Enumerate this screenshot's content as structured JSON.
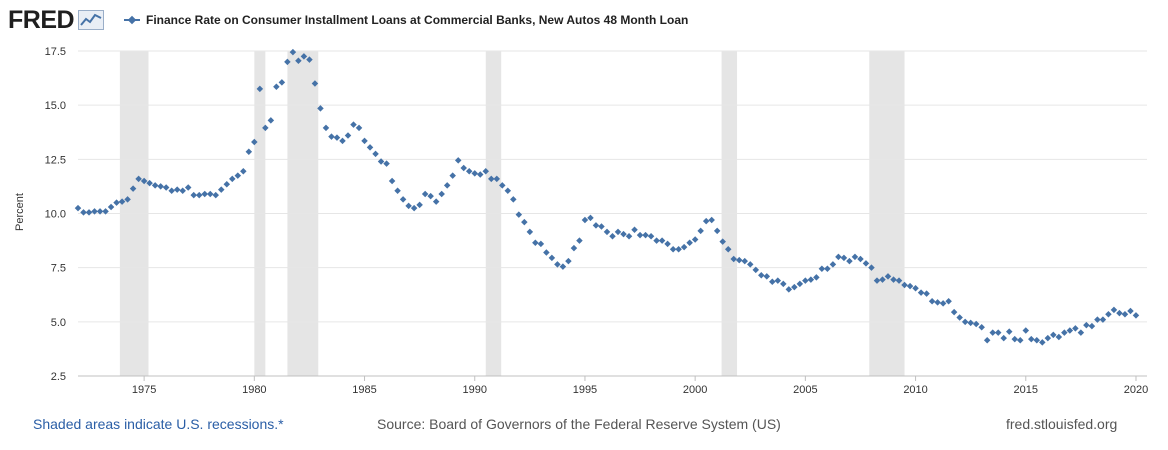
{
  "brand": {
    "logo_text": "FRED"
  },
  "chart_data": {
    "type": "scatter",
    "title": "Finance Rate on Consumer Installment Loans at Commercial Banks, New Autos 48 Month Loan",
    "series_name": "Finance Rate on Consumer Installment Loans at Commercial Banks, New Autos 48 Month Loan",
    "color": "#4572a7",
    "ylabel": "Percent",
    "xlabel": "",
    "xlim": [
      1972.0,
      2020.5
    ],
    "ylim": [
      2.5,
      17.5
    ],
    "yticks": [
      2.5,
      5.0,
      7.5,
      10.0,
      12.5,
      15.0,
      17.5
    ],
    "ytick_labels": [
      "2.5",
      "5.0",
      "7.5",
      "10.0",
      "12.5",
      "15.0",
      "17.5"
    ],
    "xticks": [
      1975,
      1980,
      1985,
      1990,
      1995,
      2000,
      2005,
      2010,
      2015,
      2020
    ],
    "xtick_labels": [
      "1975",
      "1980",
      "1985",
      "1990",
      "1995",
      "2000",
      "2005",
      "2010",
      "2015",
      "2020"
    ],
    "grid": true,
    "recessions": [
      [
        1973.9,
        1975.2
      ],
      [
        1980.0,
        1980.5
      ],
      [
        1981.5,
        1982.9
      ],
      [
        1990.5,
        1991.2
      ],
      [
        2001.2,
        2001.9
      ],
      [
        2007.9,
        2009.5
      ]
    ],
    "points": [
      [
        1972.0,
        10.25
      ],
      [
        1972.25,
        10.05
      ],
      [
        1972.5,
        10.05
      ],
      [
        1972.75,
        10.1
      ],
      [
        1973.0,
        10.1
      ],
      [
        1973.25,
        10.1
      ],
      [
        1973.5,
        10.3
      ],
      [
        1973.75,
        10.5
      ],
      [
        1974.0,
        10.55
      ],
      [
        1974.25,
        10.65
      ],
      [
        1974.5,
        11.15
      ],
      [
        1974.75,
        11.6
      ],
      [
        1975.0,
        11.5
      ],
      [
        1975.25,
        11.4
      ],
      [
        1975.5,
        11.3
      ],
      [
        1975.75,
        11.25
      ],
      [
        1976.0,
        11.2
      ],
      [
        1976.25,
        11.05
      ],
      [
        1976.5,
        11.1
      ],
      [
        1976.75,
        11.05
      ],
      [
        1977.0,
        11.2
      ],
      [
        1977.25,
        10.85
      ],
      [
        1977.5,
        10.85
      ],
      [
        1977.75,
        10.9
      ],
      [
        1978.0,
        10.9
      ],
      [
        1978.25,
        10.85
      ],
      [
        1978.5,
        11.1
      ],
      [
        1978.75,
        11.35
      ],
      [
        1979.0,
        11.6
      ],
      [
        1979.25,
        11.75
      ],
      [
        1979.5,
        11.95
      ],
      [
        1979.75,
        12.85
      ],
      [
        1980.0,
        13.3
      ],
      [
        1980.25,
        15.75
      ],
      [
        1980.5,
        13.95
      ],
      [
        1980.75,
        14.3
      ],
      [
        1981.0,
        15.85
      ],
      [
        1981.25,
        16.05
      ],
      [
        1981.5,
        17.0
      ],
      [
        1981.75,
        17.45
      ],
      [
        1982.0,
        17.05
      ],
      [
        1982.25,
        17.25
      ],
      [
        1982.5,
        17.1
      ],
      [
        1982.75,
        16.0
      ],
      [
        1983.0,
        14.85
      ],
      [
        1983.25,
        13.95
      ],
      [
        1983.5,
        13.55
      ],
      [
        1983.75,
        13.5
      ],
      [
        1984.0,
        13.35
      ],
      [
        1984.25,
        13.6
      ],
      [
        1984.5,
        14.1
      ],
      [
        1984.75,
        13.95
      ],
      [
        1985.0,
        13.35
      ],
      [
        1985.25,
        13.05
      ],
      [
        1985.5,
        12.75
      ],
      [
        1985.75,
        12.4
      ],
      [
        1986.0,
        12.3
      ],
      [
        1986.25,
        11.5
      ],
      [
        1986.5,
        11.05
      ],
      [
        1986.75,
        10.65
      ],
      [
        1987.0,
        10.35
      ],
      [
        1987.25,
        10.25
      ],
      [
        1987.5,
        10.4
      ],
      [
        1987.75,
        10.9
      ],
      [
        1988.0,
        10.8
      ],
      [
        1988.25,
        10.55
      ],
      [
        1988.5,
        10.9
      ],
      [
        1988.75,
        11.3
      ],
      [
        1989.0,
        11.75
      ],
      [
        1989.25,
        12.45
      ],
      [
        1989.5,
        12.1
      ],
      [
        1989.75,
        11.95
      ],
      [
        1990.0,
        11.85
      ],
      [
        1990.25,
        11.8
      ],
      [
        1990.5,
        11.95
      ],
      [
        1990.75,
        11.6
      ],
      [
        1991.0,
        11.6
      ],
      [
        1991.25,
        11.3
      ],
      [
        1991.5,
        11.05
      ],
      [
        1991.75,
        10.65
      ],
      [
        1992.0,
        9.95
      ],
      [
        1992.25,
        9.6
      ],
      [
        1992.5,
        9.15
      ],
      [
        1992.75,
        8.65
      ],
      [
        1993.0,
        8.6
      ],
      [
        1993.25,
        8.2
      ],
      [
        1993.5,
        7.95
      ],
      [
        1993.75,
        7.65
      ],
      [
        1994.0,
        7.55
      ],
      [
        1994.25,
        7.8
      ],
      [
        1994.5,
        8.4
      ],
      [
        1994.75,
        8.75
      ],
      [
        1995.0,
        9.7
      ],
      [
        1995.25,
        9.8
      ],
      [
        1995.5,
        9.45
      ],
      [
        1995.75,
        9.4
      ],
      [
        1996.0,
        9.15
      ],
      [
        1996.25,
        8.95
      ],
      [
        1996.5,
        9.15
      ],
      [
        1996.75,
        9.05
      ],
      [
        1997.0,
        8.95
      ],
      [
        1997.25,
        9.25
      ],
      [
        1997.5,
        9.0
      ],
      [
        1997.75,
        9.0
      ],
      [
        1998.0,
        8.95
      ],
      [
        1998.25,
        8.75
      ],
      [
        1998.5,
        8.75
      ],
      [
        1998.75,
        8.6
      ],
      [
        1999.0,
        8.35
      ],
      [
        1999.25,
        8.35
      ],
      [
        1999.5,
        8.45
      ],
      [
        1999.75,
        8.65
      ],
      [
        2000.0,
        8.8
      ],
      [
        2000.25,
        9.2
      ],
      [
        2000.5,
        9.65
      ],
      [
        2000.75,
        9.7
      ],
      [
        2001.0,
        9.2
      ],
      [
        2001.25,
        8.7
      ],
      [
        2001.5,
        8.35
      ],
      [
        2001.75,
        7.9
      ],
      [
        2002.0,
        7.85
      ],
      [
        2002.25,
        7.8
      ],
      [
        2002.5,
        7.65
      ],
      [
        2002.75,
        7.4
      ],
      [
        2003.0,
        7.15
      ],
      [
        2003.25,
        7.1
      ],
      [
        2003.5,
        6.85
      ],
      [
        2003.75,
        6.9
      ],
      [
        2004.0,
        6.75
      ],
      [
        2004.25,
        6.5
      ],
      [
        2004.5,
        6.6
      ],
      [
        2004.75,
        6.75
      ],
      [
        2005.0,
        6.9
      ],
      [
        2005.25,
        6.95
      ],
      [
        2005.5,
        7.05
      ],
      [
        2005.75,
        7.45
      ],
      [
        2006.0,
        7.45
      ],
      [
        2006.25,
        7.65
      ],
      [
        2006.5,
        8.0
      ],
      [
        2006.75,
        7.95
      ],
      [
        2007.0,
        7.8
      ],
      [
        2007.25,
        8.0
      ],
      [
        2007.5,
        7.9
      ],
      [
        2007.75,
        7.7
      ],
      [
        2008.0,
        7.5
      ],
      [
        2008.25,
        6.9
      ],
      [
        2008.5,
        6.95
      ],
      [
        2008.75,
        7.1
      ],
      [
        2009.0,
        6.95
      ],
      [
        2009.25,
        6.9
      ],
      [
        2009.5,
        6.7
      ],
      [
        2009.75,
        6.65
      ],
      [
        2010.0,
        6.55
      ],
      [
        2010.25,
        6.35
      ],
      [
        2010.5,
        6.3
      ],
      [
        2010.75,
        5.95
      ],
      [
        2011.0,
        5.9
      ],
      [
        2011.25,
        5.85
      ],
      [
        2011.5,
        5.95
      ],
      [
        2011.75,
        5.45
      ],
      [
        2012.0,
        5.2
      ],
      [
        2012.25,
        5.0
      ],
      [
        2012.5,
        4.95
      ],
      [
        2012.75,
        4.9
      ],
      [
        2013.0,
        4.75
      ],
      [
        2013.25,
        4.15
      ],
      [
        2013.5,
        4.5
      ],
      [
        2013.75,
        4.5
      ],
      [
        2014.0,
        4.25
      ],
      [
        2014.25,
        4.55
      ],
      [
        2014.5,
        4.2
      ],
      [
        2014.75,
        4.15
      ],
      [
        2015.0,
        4.6
      ],
      [
        2015.25,
        4.2
      ],
      [
        2015.5,
        4.15
      ],
      [
        2015.75,
        4.05
      ],
      [
        2016.0,
        4.25
      ],
      [
        2016.25,
        4.4
      ],
      [
        2016.5,
        4.3
      ],
      [
        2016.75,
        4.5
      ],
      [
        2017.0,
        4.6
      ],
      [
        2017.25,
        4.7
      ],
      [
        2017.5,
        4.5
      ],
      [
        2017.75,
        4.85
      ],
      [
        2018.0,
        4.8
      ],
      [
        2018.25,
        5.1
      ],
      [
        2018.5,
        5.1
      ],
      [
        2018.75,
        5.35
      ],
      [
        2019.0,
        5.55
      ],
      [
        2019.25,
        5.4
      ],
      [
        2019.5,
        5.35
      ],
      [
        2019.75,
        5.5
      ],
      [
        2020.0,
        5.3
      ]
    ]
  },
  "footer": {
    "left": "Shaded areas indicate U.S. recessions.*",
    "middle": "Source: Board of Governors of the Federal Reserve System (US)",
    "right": "fred.stlouisfed.org"
  }
}
